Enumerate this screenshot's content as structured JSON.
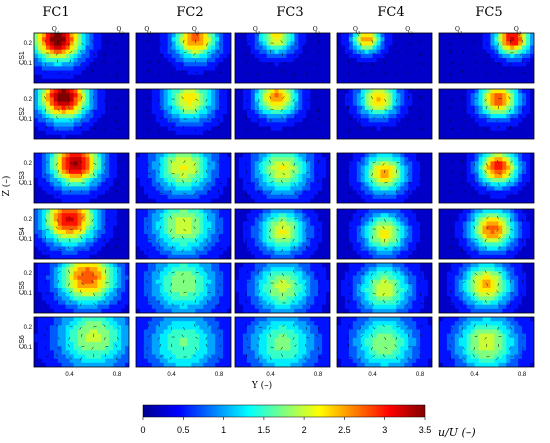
{
  "chart_data": {
    "type": "heatmap",
    "columns": [
      "FC1",
      "FC2",
      "FC3",
      "FC4",
      "FC5"
    ],
    "rows": [
      "CS1",
      "CS2",
      "CS3",
      "CS4",
      "CS5",
      "CS6"
    ],
    "xlabel": "Y (–)",
    "ylabel": "Z (–)",
    "x_ticks": [
      "0.4",
      "0.8"
    ],
    "y_ticks": [
      "0.2",
      "0.1"
    ],
    "xlim": [
      0.1,
      0.9
    ],
    "ylim": [
      0.0,
      0.25
    ],
    "colorbar": {
      "label": "u/U (–)",
      "ticks": [
        "0",
        "0.5",
        "1",
        "1.5",
        "2",
        "2.5",
        "3",
        "3.5"
      ],
      "range": [
        0,
        3.5
      ],
      "colormap": "jet"
    },
    "inlet_labels": {
      "q1": "Q",
      "q1_sub": "1",
      "q2": "Q",
      "q2_sub": "2"
    },
    "jet_peaks": [
      [
        {
          "y": 0.3,
          "z": 0.22,
          "u": 3.4,
          "w": 0.2
        },
        {
          "y": 0.6,
          "z": 0.22,
          "u": 2.5,
          "w": 0.18
        },
        {
          "y": 0.45,
          "z": 0.23,
          "u": 2.0,
          "w": 0.15
        },
        {
          "y": 0.35,
          "z": 0.22,
          "u": 2.3,
          "w": 0.12
        },
        {
          "y": 0.72,
          "z": 0.22,
          "u": 3.0,
          "w": 0.14
        }
      ],
      [
        {
          "y": 0.35,
          "z": 0.21,
          "u": 3.4,
          "w": 0.2
        },
        {
          "y": 0.55,
          "z": 0.2,
          "u": 2.0,
          "w": 0.2
        },
        {
          "y": 0.45,
          "z": 0.21,
          "u": 2.4,
          "w": 0.17
        },
        {
          "y": 0.45,
          "z": 0.2,
          "u": 2.2,
          "w": 0.16
        },
        {
          "y": 0.6,
          "z": 0.2,
          "u": 2.6,
          "w": 0.16
        }
      ],
      [
        {
          "y": 0.45,
          "z": 0.2,
          "u": 3.2,
          "w": 0.2
        },
        {
          "y": 0.5,
          "z": 0.18,
          "u": 1.9,
          "w": 0.24
        },
        {
          "y": 0.5,
          "z": 0.17,
          "u": 1.9,
          "w": 0.22
        },
        {
          "y": 0.5,
          "z": 0.15,
          "u": 2.2,
          "w": 0.18
        },
        {
          "y": 0.6,
          "z": 0.18,
          "u": 2.8,
          "w": 0.16
        }
      ],
      [
        {
          "y": 0.4,
          "z": 0.2,
          "u": 2.9,
          "w": 0.22
        },
        {
          "y": 0.5,
          "z": 0.17,
          "u": 1.8,
          "w": 0.26
        },
        {
          "y": 0.5,
          "z": 0.14,
          "u": 1.9,
          "w": 0.2
        },
        {
          "y": 0.5,
          "z": 0.13,
          "u": 2.0,
          "w": 0.18
        },
        {
          "y": 0.55,
          "z": 0.15,
          "u": 2.5,
          "w": 0.18
        }
      ],
      [
        {
          "y": 0.55,
          "z": 0.18,
          "u": 2.6,
          "w": 0.24
        },
        {
          "y": 0.5,
          "z": 0.15,
          "u": 1.6,
          "w": 0.28
        },
        {
          "y": 0.5,
          "z": 0.13,
          "u": 1.7,
          "w": 0.24
        },
        {
          "y": 0.5,
          "z": 0.12,
          "u": 1.8,
          "w": 0.22
        },
        {
          "y": 0.5,
          "z": 0.14,
          "u": 2.2,
          "w": 0.2
        }
      ],
      [
        {
          "y": 0.6,
          "z": 0.15,
          "u": 1.7,
          "w": 0.3
        },
        {
          "y": 0.5,
          "z": 0.12,
          "u": 1.4,
          "w": 0.3
        },
        {
          "y": 0.5,
          "z": 0.12,
          "u": 1.5,
          "w": 0.28
        },
        {
          "y": 0.5,
          "z": 0.12,
          "u": 1.6,
          "w": 0.26
        },
        {
          "y": 0.5,
          "z": 0.12,
          "u": 1.8,
          "w": 0.26
        }
      ]
    ]
  }
}
